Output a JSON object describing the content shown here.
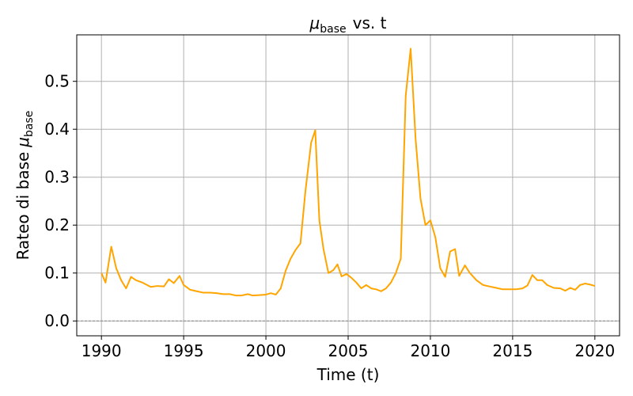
{
  "chart_data": {
    "type": "line",
    "title": {
      "symbol": "μ",
      "subscript": "base",
      "text": "vs. t"
    },
    "xlabel": "Time (t)",
    "ylabel": {
      "text": "Rateo di base",
      "symbol": "μ",
      "subscript": "base"
    },
    "x": [
      1990.0,
      1990.25,
      1990.6,
      1990.9,
      1991.2,
      1991.5,
      1991.8,
      1992.1,
      1992.5,
      1993.0,
      1993.4,
      1993.8,
      1994.1,
      1994.4,
      1994.75,
      1995.0,
      1995.4,
      1995.8,
      1996.2,
      1996.6,
      1997.0,
      1997.4,
      1997.8,
      1998.2,
      1998.5,
      1998.9,
      1999.2,
      1999.6,
      2000.0,
      2000.3,
      2000.6,
      2000.9,
      2001.2,
      2001.5,
      2001.8,
      2002.1,
      2002.4,
      2002.75,
      2003.0,
      2003.25,
      2003.5,
      2003.8,
      2004.1,
      2004.35,
      2004.6,
      2004.9,
      2005.2,
      2005.5,
      2005.8,
      2006.1,
      2006.4,
      2006.7,
      2007.0,
      2007.3,
      2007.6,
      2007.9,
      2008.2,
      2008.5,
      2008.8,
      2009.1,
      2009.4,
      2009.7,
      2010.0,
      2010.3,
      2010.6,
      2010.9,
      2011.2,
      2011.5,
      2011.75,
      2012.1,
      2012.4,
      2012.8,
      2013.2,
      2013.6,
      2014.0,
      2014.4,
      2014.8,
      2015.2,
      2015.6,
      2015.9,
      2016.2,
      2016.5,
      2016.8,
      2017.1,
      2017.5,
      2017.9,
      2018.2,
      2018.5,
      2018.8,
      2019.1,
      2019.4,
      2019.7,
      2020.0
    ],
    "series": [
      {
        "color": "#ffa500",
        "values": [
          0.1,
          0.08,
          0.155,
          0.11,
          0.085,
          0.068,
          0.092,
          0.085,
          0.08,
          0.071,
          0.073,
          0.072,
          0.087,
          0.079,
          0.094,
          0.075,
          0.065,
          0.062,
          0.059,
          0.059,
          0.058,
          0.056,
          0.056,
          0.053,
          0.053,
          0.056,
          0.053,
          0.054,
          0.055,
          0.058,
          0.055,
          0.068,
          0.105,
          0.13,
          0.148,
          0.162,
          0.27,
          0.372,
          0.398,
          0.21,
          0.15,
          0.1,
          0.106,
          0.118,
          0.093,
          0.098,
          0.09,
          0.08,
          0.068,
          0.075,
          0.068,
          0.066,
          0.062,
          0.068,
          0.08,
          0.1,
          0.13,
          0.47,
          0.568,
          0.38,
          0.255,
          0.2,
          0.21,
          0.175,
          0.11,
          0.092,
          0.145,
          0.15,
          0.094,
          0.116,
          0.1,
          0.085,
          0.075,
          0.072,
          0.069,
          0.066,
          0.066,
          0.066,
          0.068,
          0.074,
          0.096,
          0.085,
          0.085,
          0.075,
          0.069,
          0.068,
          0.063,
          0.069,
          0.065,
          0.075,
          0.078,
          0.076,
          0.073
        ]
      }
    ],
    "xlim": [
      1988.5,
      2021.5
    ],
    "xticks": [
      1990,
      1995,
      2000,
      2005,
      2010,
      2015,
      2020
    ],
    "ylim": [
      -0.031,
      0.597
    ],
    "yticks": [
      {
        "value": 0,
        "label": "0.0"
      },
      0.1,
      0.2,
      0.3,
      0.4,
      0.5
    ],
    "hline": 0,
    "grid": true
  }
}
